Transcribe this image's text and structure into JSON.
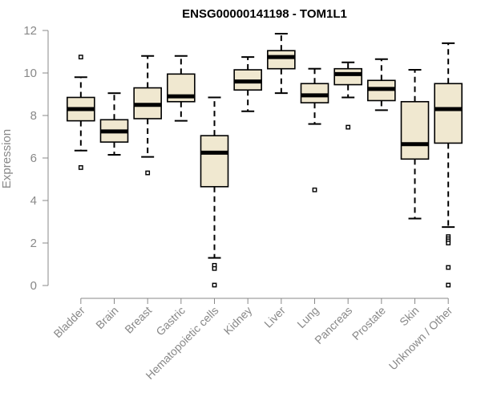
{
  "chart_data": {
    "type": "boxplot",
    "title": "ENSG00000141198 - TOM1L1",
    "xlabel": "",
    "ylabel": "Expression",
    "ylim": [
      0,
      12
    ],
    "yticks": [
      0,
      2,
      4,
      6,
      8,
      10,
      12
    ],
    "grid": false,
    "box_fill": "#f0e8d0",
    "box_stroke": "#000000",
    "axis_color": "#888888",
    "categories": [
      "Bladder",
      "Brain",
      "Breast",
      "Gastric",
      "Hematopoietic cells",
      "Kidney",
      "Liver",
      "Lung",
      "Pancreas",
      "Prostate",
      "Skin",
      "Unknown / Other"
    ],
    "boxes": [
      {
        "whisker_low": 6.35,
        "q1": 7.75,
        "median": 8.3,
        "q3": 8.85,
        "whisker_high": 9.8,
        "outliers": [
          10.75,
          5.55
        ]
      },
      {
        "whisker_low": 6.15,
        "q1": 6.75,
        "median": 7.25,
        "q3": 7.8,
        "whisker_high": 9.05,
        "outliers": []
      },
      {
        "whisker_low": 6.05,
        "q1": 7.85,
        "median": 8.5,
        "q3": 9.3,
        "whisker_high": 10.8,
        "outliers": [
          5.3
        ]
      },
      {
        "whisker_low": 7.75,
        "q1": 8.65,
        "median": 8.9,
        "q3": 9.95,
        "whisker_high": 10.8,
        "outliers": []
      },
      {
        "whisker_low": 1.3,
        "q1": 4.65,
        "median": 6.25,
        "q3": 7.05,
        "whisker_high": 8.85,
        "outliers": [
          0.95,
          0.8,
          0.02
        ]
      },
      {
        "whisker_low": 8.2,
        "q1": 9.2,
        "median": 9.6,
        "q3": 10.15,
        "whisker_high": 10.75,
        "outliers": []
      },
      {
        "whisker_low": 9.05,
        "q1": 10.2,
        "median": 10.75,
        "q3": 11.05,
        "whisker_high": 11.85,
        "outliers": []
      },
      {
        "whisker_low": 7.6,
        "q1": 8.6,
        "median": 8.95,
        "q3": 9.5,
        "whisker_high": 10.2,
        "outliers": [
          4.5
        ]
      },
      {
        "whisker_low": 8.85,
        "q1": 9.45,
        "median": 9.95,
        "q3": 10.2,
        "whisker_high": 10.5,
        "outliers": [
          7.45
        ]
      },
      {
        "whisker_low": 8.25,
        "q1": 8.7,
        "median": 9.25,
        "q3": 9.65,
        "whisker_high": 10.65,
        "outliers": []
      },
      {
        "whisker_low": 3.15,
        "q1": 5.95,
        "median": 6.65,
        "q3": 8.65,
        "whisker_high": 10.15,
        "outliers": []
      },
      {
        "whisker_low": 2.75,
        "q1": 6.7,
        "median": 8.3,
        "q3": 9.5,
        "whisker_high": 11.4,
        "outliers": [
          2.3,
          2.2,
          2.1,
          2.0,
          0.85,
          0.02
        ]
      }
    ]
  }
}
